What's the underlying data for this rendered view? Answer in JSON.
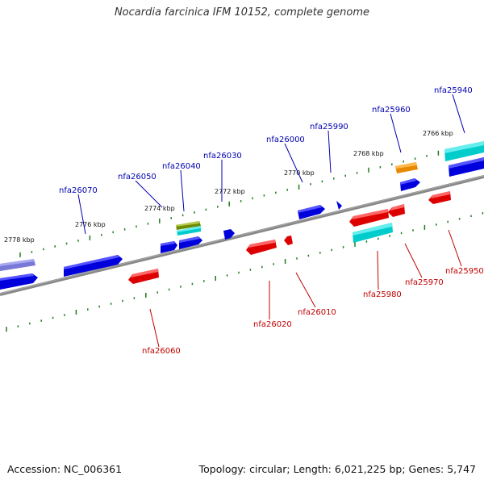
{
  "title": "Nocardia farcinica IFM 10152, complete genome",
  "footer": {
    "accession": "Accession: NC_006361",
    "topology": "Topology: circular; Length: 6,021,225 bp; Genes: 5,747"
  },
  "colors": {
    "backbone": "#808080",
    "tick": "#1f7a1f",
    "forward_label": "#0000b0",
    "reverse_label": "#c00000",
    "gene_blue": "#0000ee",
    "gene_red": "#ee0000",
    "gene_cyan": "#00dddd",
    "gene_orange": "#ff9900",
    "gene_olive": "#669900",
    "gene_slate": "#7070dd"
  },
  "scale_labels": [
    "2778 kbp",
    "2776 kbp",
    "2774 kbp",
    "2772 kbp",
    "2770 kbp",
    "2768 kbp",
    "2766 kbp"
  ],
  "forward_labels": [
    "nfa26070",
    "nfa26050",
    "nfa26040",
    "nfa26030",
    "nfa26000",
    "nfa25990",
    "nfa25960",
    "nfa25940"
  ],
  "reverse_labels": [
    "nfa26060",
    "nfa26020",
    "nfa26010",
    "nfa25980",
    "nfa25970",
    "nfa25950"
  ]
}
